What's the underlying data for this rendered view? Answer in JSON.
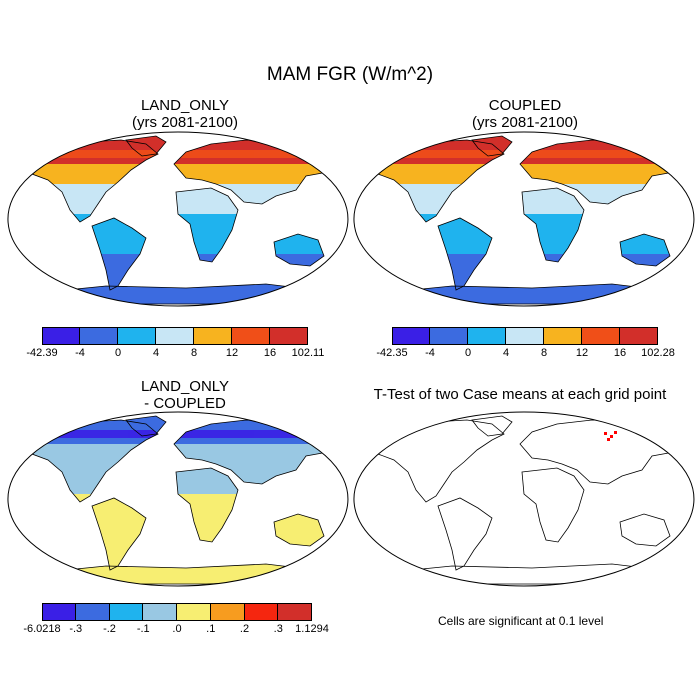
{
  "title": "MAM FGR (W/m^2)",
  "panels": {
    "land_only": {
      "title1": "LAND_ONLY",
      "title2": "(yrs 2081-2100)"
    },
    "coupled": {
      "title1": "COUPLED",
      "title2": "(yrs 2081-2100)"
    },
    "diff": {
      "title1": "LAND_ONLY",
      "title2": "- COUPLED"
    },
    "ttest": {
      "title1": "T-Test of two Case means at each grid point",
      "note": "Cells are significant at 0.1 level"
    }
  },
  "colorbars": {
    "land_only": {
      "colors": [
        "#3a1fe6",
        "#3c6be0",
        "#1fb3ee",
        "#c8e6f5",
        "#f7b31f",
        "#f04f18",
        "#d22f2a"
      ],
      "labels": [
        "-42.39",
        "-4",
        "0",
        "4",
        "8",
        "12",
        "16",
        "102.11"
      ]
    },
    "coupled": {
      "colors": [
        "#3a1fe6",
        "#3c6be0",
        "#1fb3ee",
        "#c8e6f5",
        "#f7b31f",
        "#f04f18",
        "#d22f2a"
      ],
      "labels": [
        "-42.35",
        "-4",
        "0",
        "4",
        "8",
        "12",
        "16",
        "102.28"
      ]
    },
    "diff": {
      "colors": [
        "#3a1fe6",
        "#3c6be0",
        "#1fb3ee",
        "#99c8e3",
        "#f7ee72",
        "#f79c1f",
        "#f5260f",
        "#d22f2a"
      ],
      "labels": [
        "-6.0218",
        "-.3",
        "-.2",
        "-.1",
        ".0",
        ".1",
        ".2",
        ".3",
        "1.1294"
      ]
    }
  },
  "map_colors": {
    "ocean": "#ffffff",
    "coast": "#000000",
    "land_only": {
      "arctic": "#d22f2a",
      "north": "#f04f18",
      "mid": "#f7b31f",
      "temperate": "#c8e6f5",
      "tropics": "#1fb3ee",
      "south": "#3c6be0",
      "antarctica": "#3c6be0"
    },
    "diff": {
      "north_band": "#3a1fe6",
      "north": "#3c6be0",
      "mid": "#99c8e3",
      "tropics": "#f7ee72",
      "antarctica": "#f7ee72"
    },
    "significant": "#ff0000"
  }
}
